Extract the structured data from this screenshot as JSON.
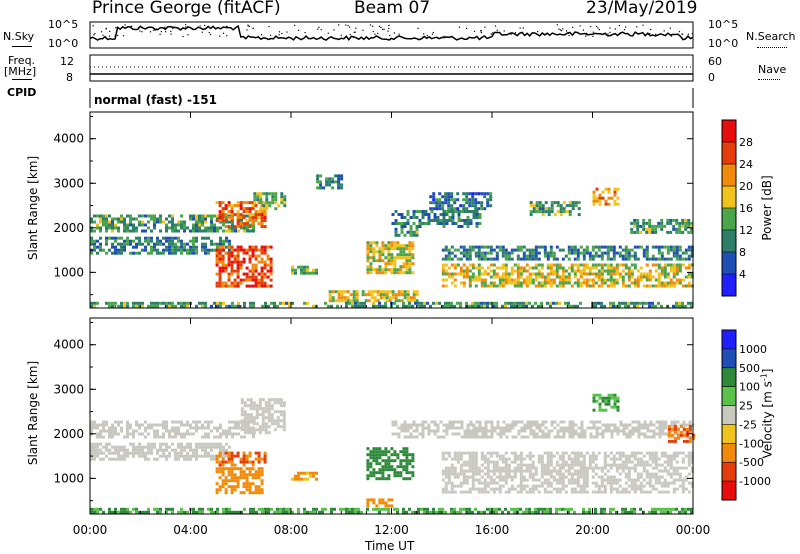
{
  "header": {
    "station": "Prince George (fitACF)",
    "beam": "Beam 07",
    "date": "23/May/2019"
  },
  "summary_panels": {
    "nsky_label": "N.Sky",
    "nsky_ticks": [
      "10^5",
      "10^0"
    ],
    "nsearch_label": "N.Search",
    "nsearch_ticks": [
      "10^5",
      "10^0"
    ],
    "freq_label_1": "Freq.",
    "freq_label_2": "[MHz]",
    "freq_ticks": [
      "12",
      "8"
    ],
    "nave_label": "Nave",
    "nave_ticks": [
      "60",
      "0"
    ],
    "cpid_label": "CPID",
    "cpid_text": "normal (fast) -151"
  },
  "chart_data": [
    {
      "type": "heatmap",
      "name": "power",
      "ylabel": "Slant Range [km]",
      "ylim": [
        200,
        4600
      ],
      "yticks": [
        "1000",
        "2000",
        "3000",
        "4000"
      ],
      "xlim": [
        "00:00",
        "24:00"
      ],
      "colorbar_label": "Power [dB]",
      "colorbar_ticks": [
        "4",
        "8",
        "12",
        "16",
        "20",
        "24",
        "28"
      ],
      "colorbar_colors": [
        "#1f1fff",
        "#1f4fb5",
        "#2e7f6a",
        "#4aa64a",
        "#f0c21c",
        "#f08a0a",
        "#e43c0a",
        "#e80d0d"
      ],
      "regions": [
        {
          "t0": 0.0,
          "t1": 6.5,
          "r0": 1900,
          "r1": 2300,
          "level": 12
        },
        {
          "t0": 0.0,
          "t1": 5.5,
          "r0": 1450,
          "r1": 1800,
          "level": 10
        },
        {
          "t0": 5.0,
          "t1": 7.0,
          "r0": 2000,
          "r1": 2600,
          "level": 24
        },
        {
          "t0": 6.5,
          "t1": 7.7,
          "r0": 2400,
          "r1": 2800,
          "level": 14
        },
        {
          "t0": 5.0,
          "t1": 7.2,
          "r0": 700,
          "r1": 1600,
          "level": 26
        },
        {
          "t0": 8.0,
          "t1": 9.0,
          "r0": 950,
          "r1": 1150,
          "level": 14
        },
        {
          "t0": 9.5,
          "t1": 13.0,
          "r0": 350,
          "r1": 600,
          "level": 18
        },
        {
          "t0": 11.0,
          "t1": 12.8,
          "r0": 1000,
          "r1": 1700,
          "level": 18
        },
        {
          "t0": 12.0,
          "t1": 13.0,
          "r0": 1800,
          "r1": 2000,
          "level": 12
        },
        {
          "t0": 9.0,
          "t1": 10.0,
          "r0": 2900,
          "r1": 3200,
          "level": 10
        },
        {
          "t0": 12.0,
          "t1": 15.5,
          "r0": 2000,
          "r1": 2400,
          "level": 10
        },
        {
          "t0": 13.5,
          "t1": 16.0,
          "r0": 2400,
          "r1": 2800,
          "level": 8
        },
        {
          "t0": 14.0,
          "t1": 24.0,
          "r0": 1300,
          "r1": 1600,
          "level": 10
        },
        {
          "t0": 14.0,
          "t1": 24.0,
          "r0": 700,
          "r1": 1200,
          "level": 18
        },
        {
          "t0": 17.5,
          "t1": 19.5,
          "r0": 2300,
          "r1": 2600,
          "level": 12
        },
        {
          "t0": 20.0,
          "t1": 21.0,
          "r0": 2500,
          "r1": 2900,
          "level": 22
        },
        {
          "t0": 21.5,
          "t1": 24.0,
          "r0": 1900,
          "r1": 2200,
          "level": 12
        },
        {
          "t0": 0.0,
          "t1": 24.0,
          "r0": 220,
          "r1": 340,
          "level": 12
        }
      ]
    },
    {
      "type": "heatmap",
      "name": "velocity",
      "ylabel": "Slant Range [km]",
      "ylim": [
        200,
        4600
      ],
      "yticks": [
        "1000",
        "2000",
        "3000",
        "4000"
      ],
      "xlabel": "Time UT",
      "xticks": [
        "00:00",
        "04:00",
        "08:00",
        "12:00",
        "16:00",
        "20:00",
        "00:00"
      ],
      "colorbar_label": "Velocity [m s",
      "colorbar_label_sup": "-1",
      "colorbar_label_end": "]",
      "colorbar_ticks": [
        "1000",
        "500",
        "100",
        "25",
        "-25",
        "-100",
        "-500",
        "-1000"
      ],
      "colorbar_colors": [
        "#1f1fff",
        "#1f4fb5",
        "#2e8a3a",
        "#5ac24a",
        "#c8c8c0",
        "#f0c21c",
        "#f08a0a",
        "#e43c0a",
        "#e80d0d"
      ],
      "regions": [
        {
          "t0": 0.0,
          "t1": 6.5,
          "r0": 1900,
          "r1": 2300,
          "level": 0
        },
        {
          "t0": 0.0,
          "t1": 5.5,
          "r0": 1450,
          "r1": 1800,
          "level": 0
        },
        {
          "t0": 6.0,
          "t1": 7.7,
          "r0": 2000,
          "r1": 2800,
          "level": 0
        },
        {
          "t0": 5.0,
          "t1": 7.0,
          "r0": 1300,
          "r1": 1600,
          "level": -300
        },
        {
          "t0": 5.0,
          "t1": 6.8,
          "r0": 700,
          "r1": 1250,
          "level": -100
        },
        {
          "t0": 8.0,
          "t1": 9.0,
          "r0": 950,
          "r1": 1150,
          "level": -60
        },
        {
          "t0": 11.0,
          "t1": 12.8,
          "r0": 1000,
          "r1": 1700,
          "level": 150
        },
        {
          "t0": 11.0,
          "t1": 12.0,
          "r0": 350,
          "r1": 550,
          "level": -100
        },
        {
          "t0": 12.0,
          "t1": 24.0,
          "r0": 1900,
          "r1": 2300,
          "level": 0
        },
        {
          "t0": 14.0,
          "t1": 24.0,
          "r0": 700,
          "r1": 1600,
          "level": 0
        },
        {
          "t0": 20.0,
          "t1": 21.0,
          "r0": 2500,
          "r1": 2900,
          "level": 60
        },
        {
          "t0": 23.0,
          "t1": 24.0,
          "r0": 1800,
          "r1": 2200,
          "level": -300
        },
        {
          "t0": 0.0,
          "t1": 24.0,
          "r0": 220,
          "r1": 340,
          "level": 60
        }
      ]
    }
  ]
}
